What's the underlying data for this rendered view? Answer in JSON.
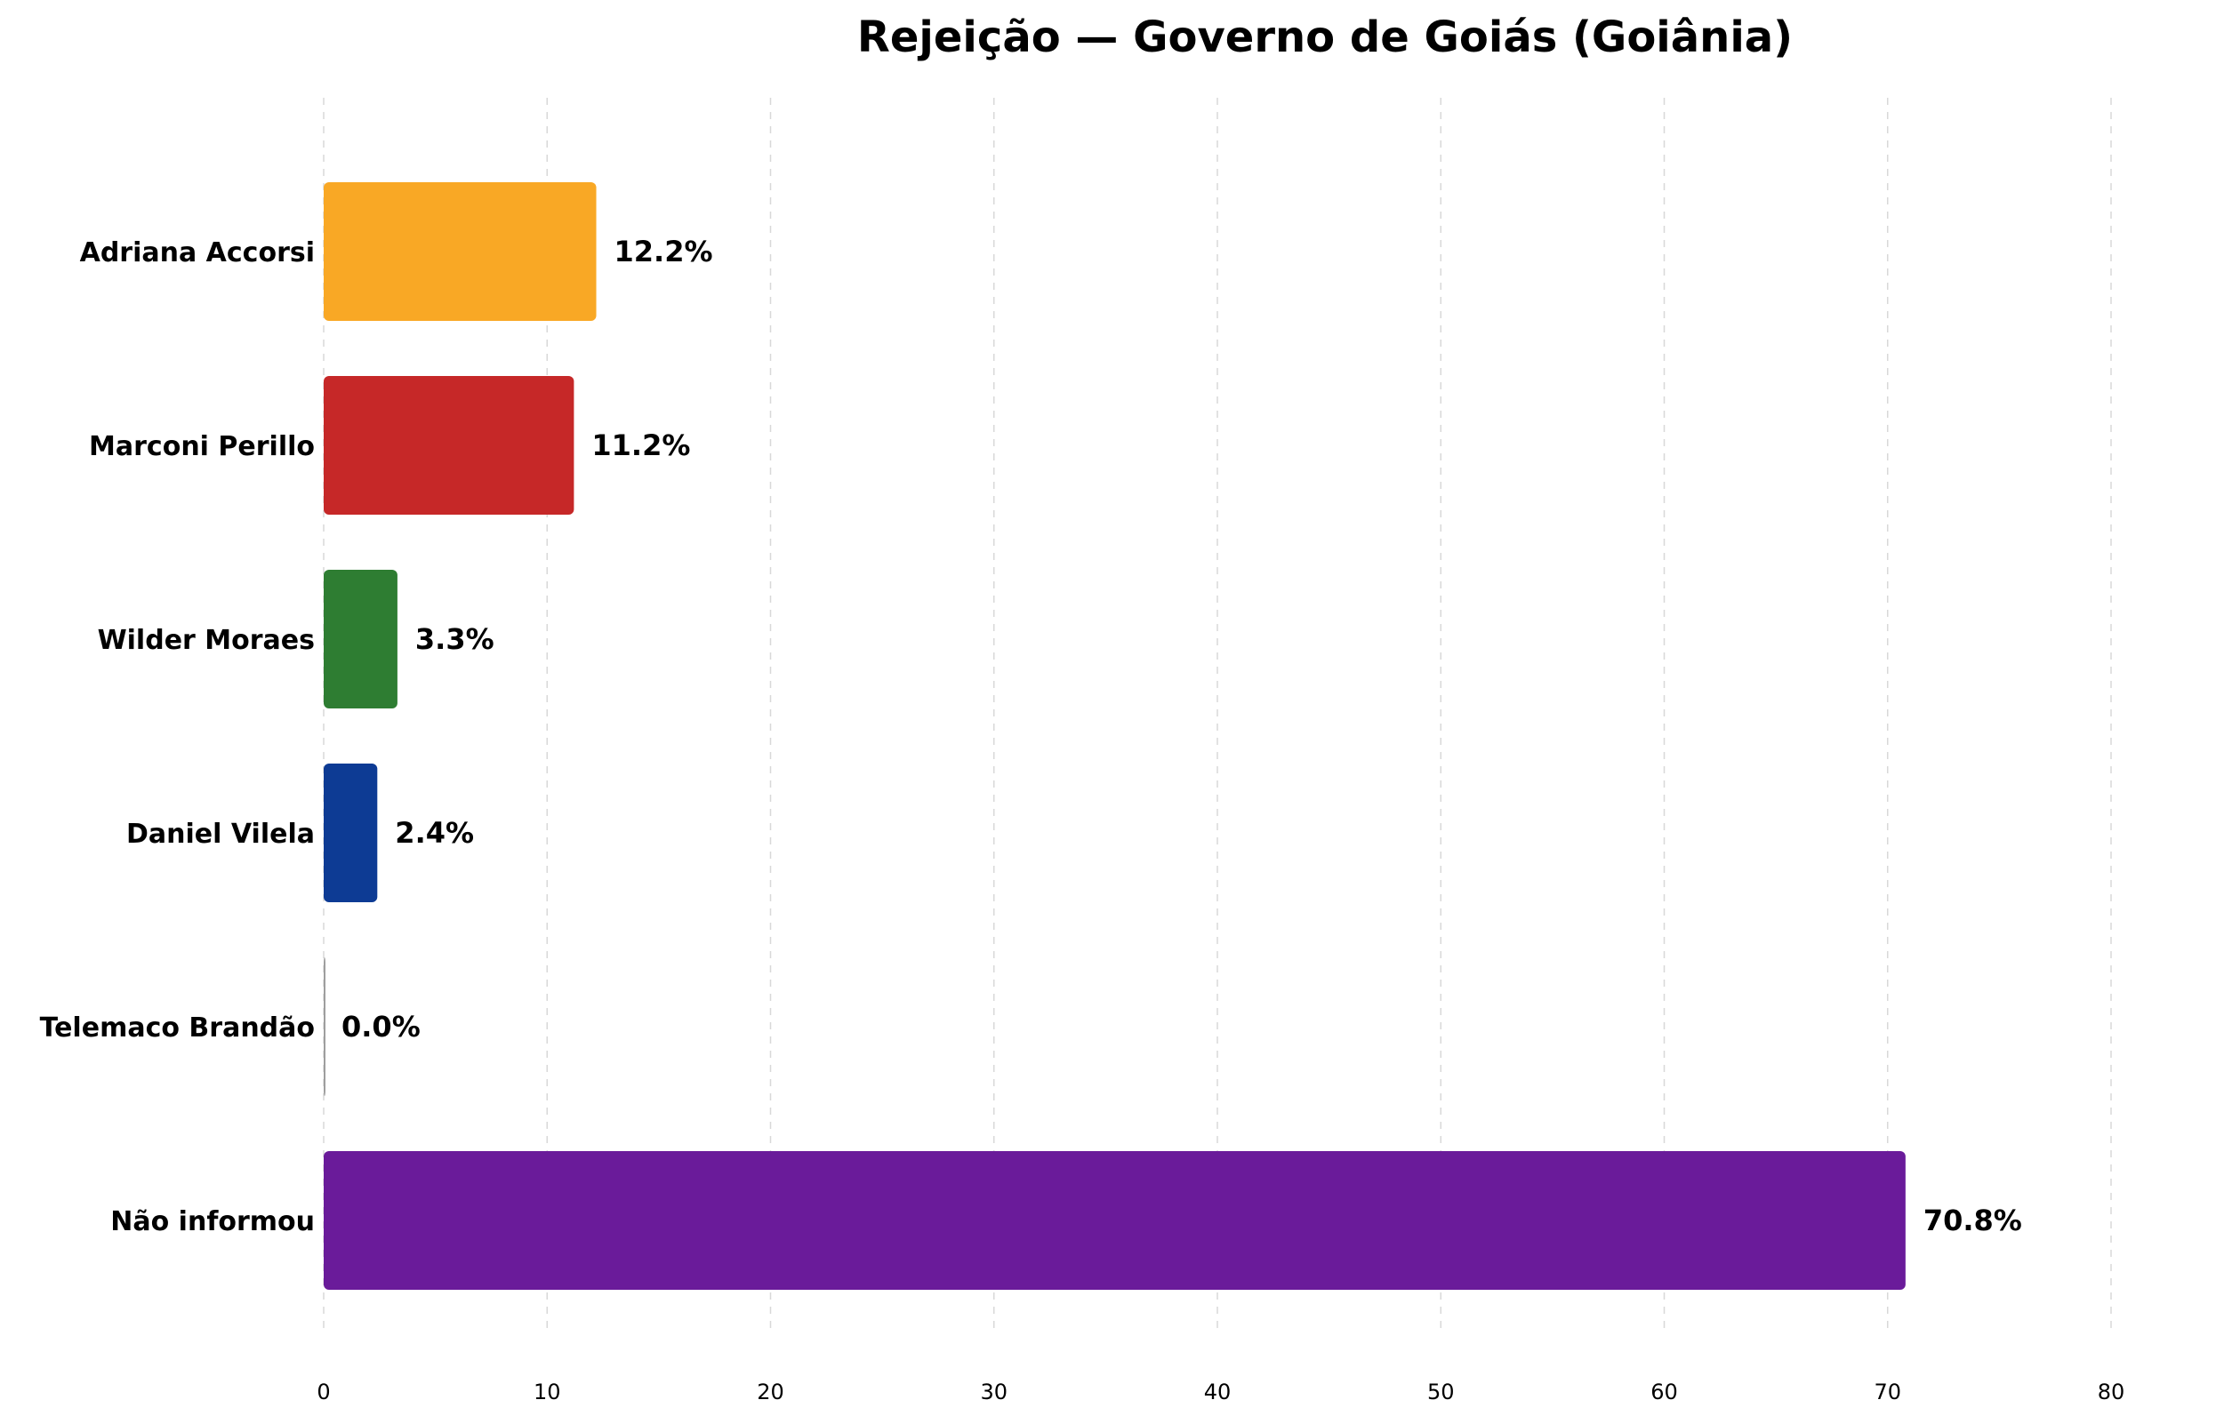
{
  "chart_data": {
    "type": "bar",
    "orientation": "horizontal",
    "title": "Rejeição — Governo de Goiás (Goiânia)",
    "xlabel": "",
    "ylabel": "",
    "xlim": [
      0,
      80
    ],
    "x_ticks": [
      0,
      10,
      20,
      30,
      40,
      50,
      60,
      70,
      80
    ],
    "grid": "x, dashed",
    "legend": "none",
    "categories": [
      "Adriana Accorsi",
      "Marconi Perillo",
      "Wilder Moraes",
      "Daniel Vilela",
      "Telemaco Brandão",
      "Não informou"
    ],
    "values": [
      12.2,
      11.2,
      3.3,
      2.4,
      0.0,
      70.8
    ],
    "value_labels": [
      "12.2%",
      "11.2%",
      "3.3%",
      "2.4%",
      "0.0%",
      "70.8%"
    ],
    "colors": [
      "#F9A825",
      "#C62828",
      "#2E7D32",
      "#0D3B94",
      "#9E9E9E",
      "#6A1B9A"
    ]
  }
}
